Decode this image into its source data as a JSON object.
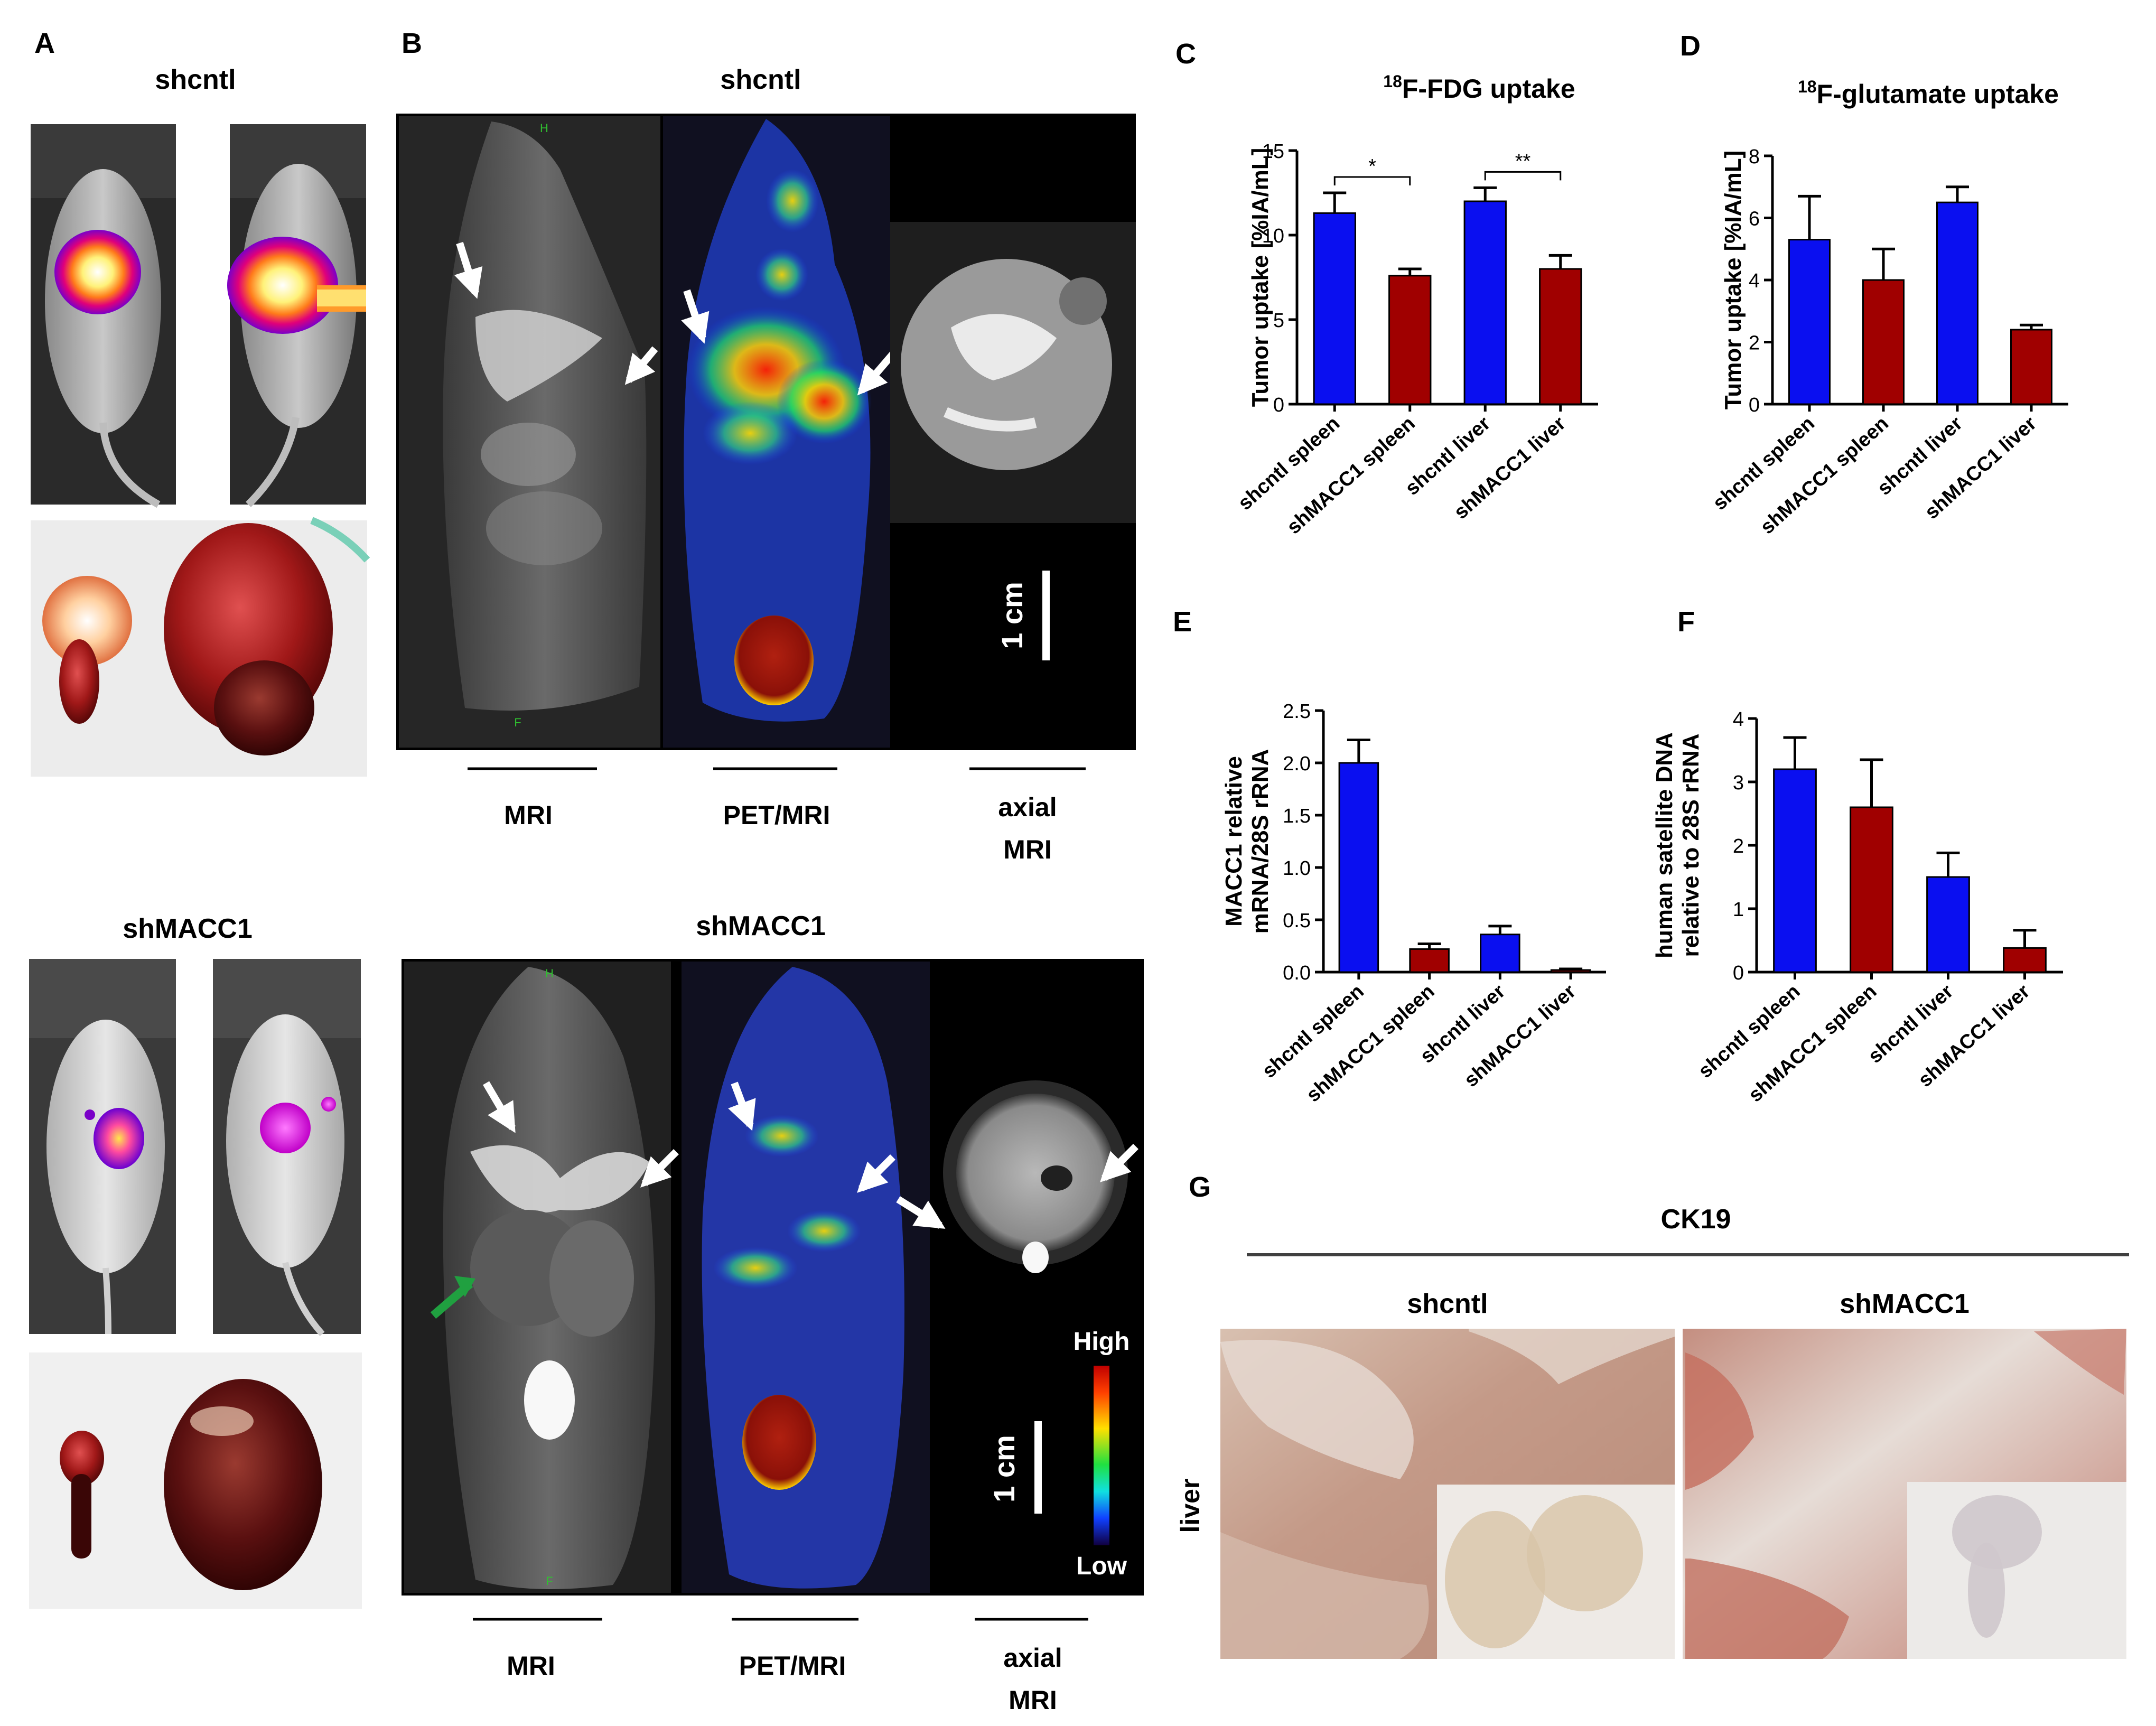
{
  "panels": {
    "A": {
      "letter": "A",
      "top_label": "shcntl",
      "bottom_label": "shMACC1"
    },
    "B": {
      "letter": "B",
      "top_label": "shcntl",
      "bottom_label": "shMACC1",
      "captions": [
        "MRI",
        "PET/MRI",
        "axial",
        "MRI"
      ],
      "scale_bar": "1 cm",
      "mri_marks": [
        "H",
        "F"
      ],
      "colorbar": {
        "high": "High",
        "low": "Low"
      }
    },
    "C": {
      "letter": "C"
    },
    "D": {
      "letter": "D"
    },
    "E": {
      "letter": "E"
    },
    "F": {
      "letter": "F"
    },
    "G": {
      "letter": "G",
      "header": "CK19",
      "columns": [
        "shcntl",
        "shMACC1"
      ],
      "row_label": "liver"
    }
  },
  "colors": {
    "blue_bar": "#0a0ff0",
    "red_bar": "#a00000"
  },
  "chart_data": [
    {
      "id": "C",
      "type": "bar",
      "title_sup": "18",
      "title_rest": "F-FDG uptake",
      "ylabel": "Tumor uptake [%IA/mL]",
      "categories": [
        "shcntl spleen",
        "shMACC1 spleen",
        "shcntl liver",
        "shMACC1 liver"
      ],
      "values": [
        11.3,
        7.6,
        12.0,
        8.0
      ],
      "errors": [
        1.2,
        0.4,
        0.8,
        0.8
      ],
      "bar_colors": [
        "#0a0ff0",
        "#a00000",
        "#0a0ff0",
        "#a00000"
      ],
      "ylim": [
        0,
        15
      ],
      "yticks": [
        "0",
        "5",
        "10",
        "15"
      ],
      "significance": [
        {
          "from": 0,
          "to": 1,
          "label": "*"
        },
        {
          "from": 2,
          "to": 3,
          "label": "**"
        }
      ]
    },
    {
      "id": "D",
      "type": "bar",
      "title_sup": "18",
      "title_rest": "F-glutamate uptake",
      "ylabel": "Tumor uptake [%IA/mL]",
      "categories": [
        "shcntl spleen",
        "shMACC1 spleen",
        "shcntl liver",
        "shMACC1 liver"
      ],
      "values": [
        5.3,
        4.0,
        6.5,
        2.4
      ],
      "errors": [
        1.4,
        1.0,
        0.5,
        0.15
      ],
      "bar_colors": [
        "#0a0ff0",
        "#a00000",
        "#0a0ff0",
        "#a00000"
      ],
      "ylim": [
        0,
        8
      ],
      "yticks": [
        "0",
        "2",
        "4",
        "6",
        "8"
      ],
      "significance": []
    },
    {
      "id": "E",
      "type": "bar",
      "ylabel_lines": [
        "MACC1 relative",
        "mRNA/28S rRNA"
      ],
      "categories": [
        "shcntl spleen",
        "shMACC1 spleen",
        "shcntl liver",
        "shMACC1 liver"
      ],
      "values": [
        2.0,
        0.22,
        0.36,
        0.02
      ],
      "errors": [
        0.22,
        0.05,
        0.08,
        0.01
      ],
      "bar_colors": [
        "#0a0ff0",
        "#a00000",
        "#0a0ff0",
        "#a00000"
      ],
      "ylim": [
        0,
        2.5
      ],
      "yticks": [
        "0.0",
        "0.5",
        "1.0",
        "1.5",
        "2.0",
        "2.5"
      ],
      "significance": []
    },
    {
      "id": "F",
      "type": "bar",
      "ylabel_lines": [
        "human satellite DNA",
        "relative to 28S rRNA"
      ],
      "categories": [
        "shcntl spleen",
        "shMACC1 spleen",
        "shcntl liver",
        "shMACC1 liver"
      ],
      "values": [
        3.2,
        2.6,
        1.5,
        0.38
      ],
      "errors": [
        0.5,
        0.75,
        0.38,
        0.28
      ],
      "bar_colors": [
        "#0a0ff0",
        "#a00000",
        "#0a0ff0",
        "#a00000"
      ],
      "ylim": [
        0,
        4
      ],
      "yticks": [
        "0",
        "1",
        "2",
        "3",
        "4"
      ],
      "significance": []
    }
  ]
}
